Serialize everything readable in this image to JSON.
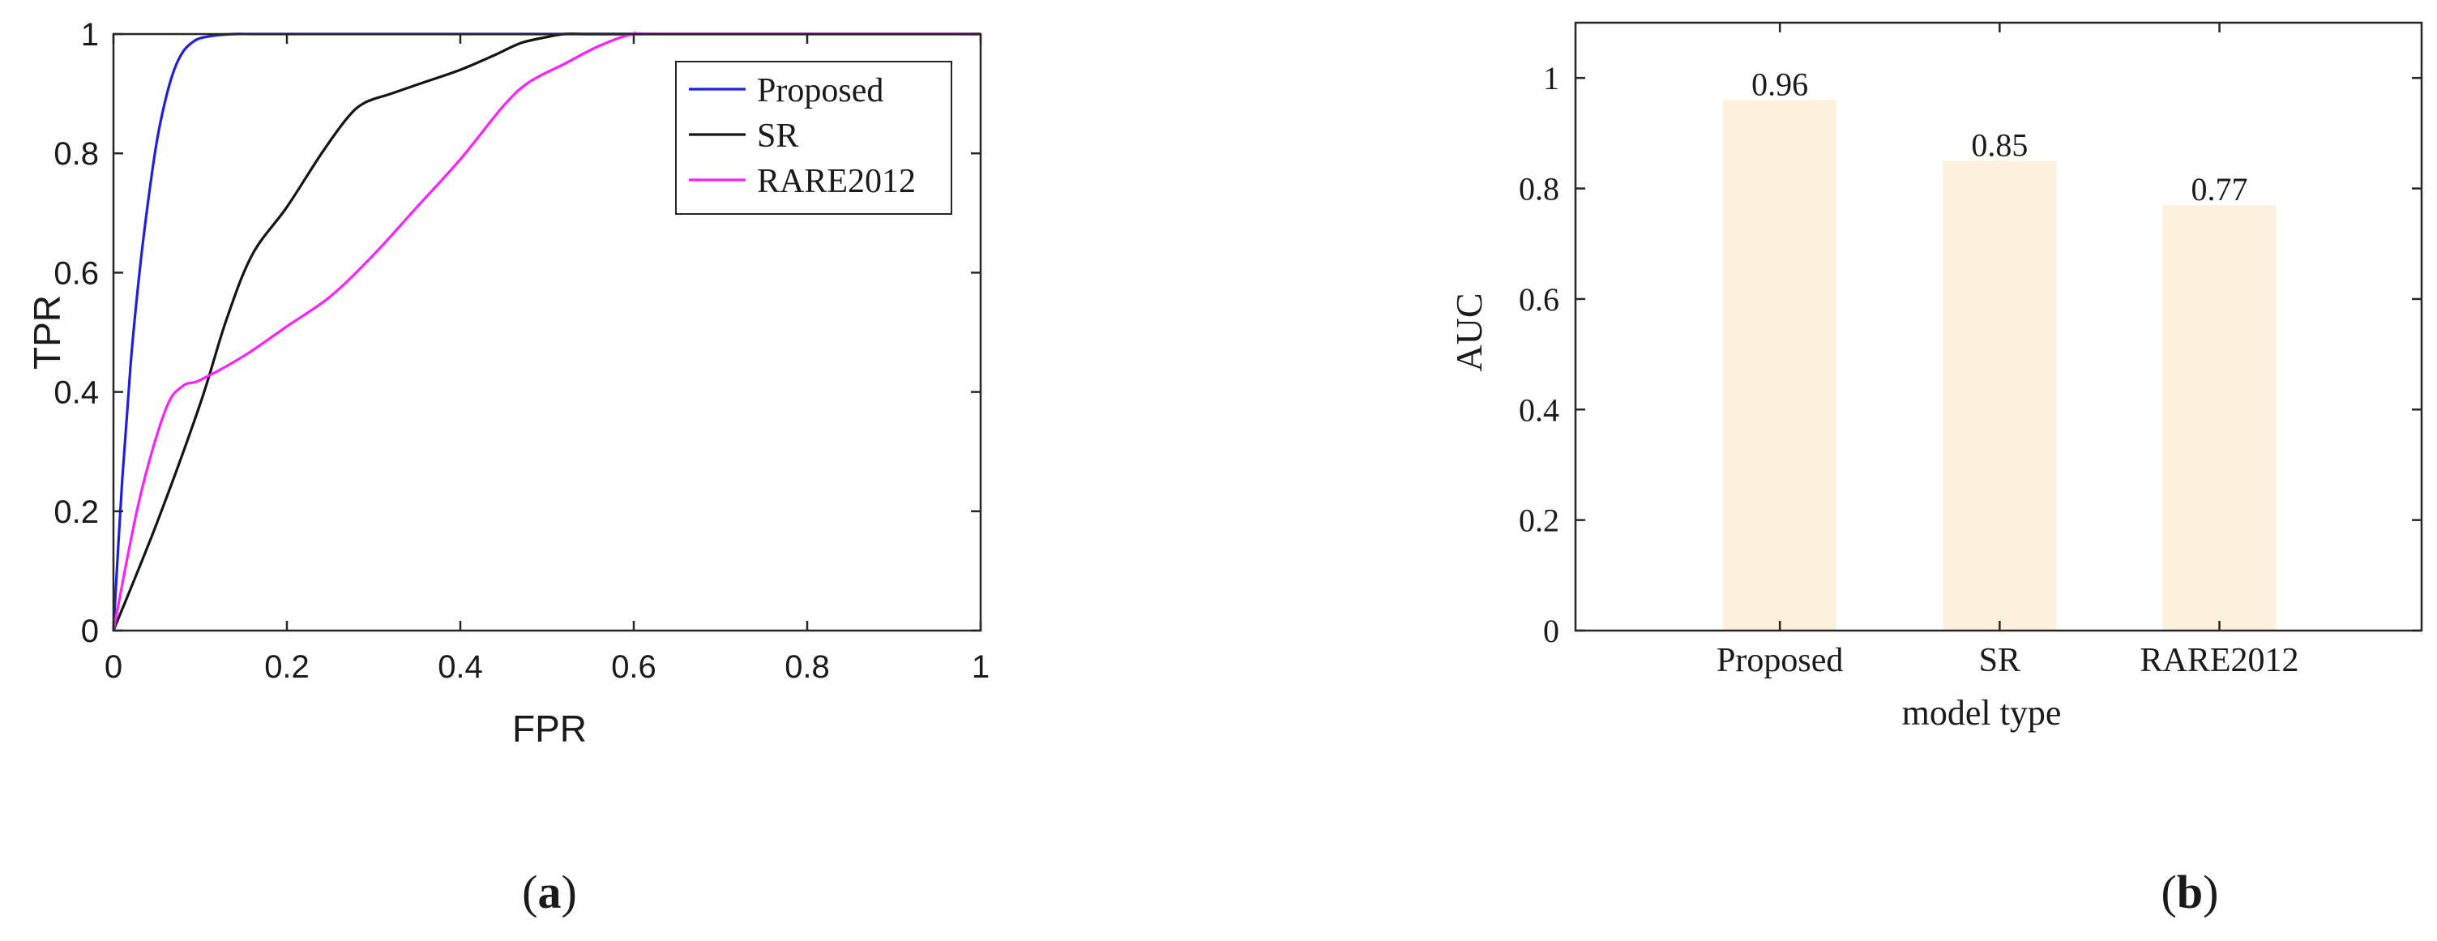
{
  "chart_data": [
    {
      "type": "line",
      "xlabel": "FPR",
      "ylabel": "TPR",
      "xlim": [
        0,
        1
      ],
      "ylim": [
        0,
        1
      ],
      "xticks": [
        "0",
        "0.2",
        "0.4",
        "0.6",
        "0.8",
        "1"
      ],
      "yticks": [
        "0",
        "0.2",
        "0.4",
        "0.6",
        "0.8",
        "1"
      ],
      "grid": false,
      "legend_position": "top-right",
      "series": [
        {
          "name": "Proposed",
          "color": "#1f1fe0",
          "x": [
            0,
            0.01,
            0.02,
            0.03,
            0.04,
            0.05,
            0.06,
            0.07,
            0.08,
            0.09,
            0.1,
            0.12,
            0.14,
            0.16,
            0.2,
            0.3,
            0.6,
            1.0
          ],
          "y": [
            0,
            0.25,
            0.45,
            0.6,
            0.72,
            0.82,
            0.89,
            0.94,
            0.97,
            0.985,
            0.993,
            0.998,
            1.0,
            1.0,
            1.0,
            1.0,
            1.0,
            1.0
          ]
        },
        {
          "name": "SR",
          "color": "#141414",
          "x": [
            0,
            0.05,
            0.1,
            0.13,
            0.16,
            0.2,
            0.24,
            0.27,
            0.29,
            0.32,
            0.36,
            0.4,
            0.44,
            0.47,
            0.5,
            0.52,
            0.55,
            0.6,
            1.0
          ],
          "y": [
            0,
            0.18,
            0.38,
            0.52,
            0.63,
            0.71,
            0.8,
            0.86,
            0.885,
            0.9,
            0.92,
            0.94,
            0.965,
            0.985,
            0.995,
            1.0,
            1.0,
            1.0,
            1.0
          ],
          "smooth": true
        },
        {
          "name": "RARE2012",
          "color": "#ff1fff",
          "x": [
            0,
            0.03,
            0.06,
            0.08,
            0.1,
            0.15,
            0.2,
            0.25,
            0.3,
            0.35,
            0.4,
            0.45,
            0.48,
            0.52,
            0.56,
            0.6,
            0.64,
            1.0
          ],
          "y": [
            0,
            0.22,
            0.37,
            0.41,
            0.42,
            0.46,
            0.51,
            0.56,
            0.63,
            0.71,
            0.79,
            0.88,
            0.92,
            0.95,
            0.98,
            1.0,
            1.0,
            1.0
          ],
          "smooth": true
        }
      ]
    },
    {
      "type": "bar",
      "xlabel": "model type",
      "ylabel": "AUC",
      "ylim": [
        0,
        1.1
      ],
      "yticks": [
        "0",
        "0.2",
        "0.4",
        "0.6",
        "0.8",
        "1"
      ],
      "categories": [
        "Proposed",
        "SR",
        "RARE2012"
      ],
      "values": [
        0.96,
        0.85,
        0.77
      ],
      "value_labels": [
        "0.96",
        "0.85",
        "0.77"
      ],
      "bar_color": "#fdf0dc",
      "grid": false
    }
  ],
  "panel_labels": {
    "a": {
      "open": "(",
      "letter": "a",
      "close": ")"
    },
    "b": {
      "open": "(",
      "letter": "b",
      "close": ")"
    }
  }
}
